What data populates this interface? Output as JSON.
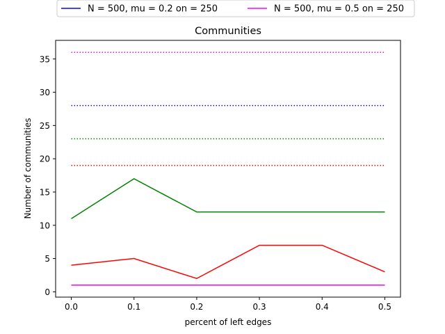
{
  "chart_data": {
    "type": "line",
    "title": "Communities",
    "xlabel": "percent of left edges",
    "ylabel": "Number of communities",
    "xlim": [
      -0.025,
      0.525
    ],
    "ylim": [
      -0.8,
      37.8
    ],
    "xticks": [
      0.0,
      0.1,
      0.2,
      0.3,
      0.4,
      0.5
    ],
    "xtick_labels": [
      "0.0",
      "0.1",
      "0.2",
      "0.3",
      "0.4",
      "0.5"
    ],
    "yticks": [
      0,
      5,
      10,
      15,
      20,
      25,
      30,
      35
    ],
    "ytick_labels": [
      "0",
      "5",
      "10",
      "15",
      "20",
      "25",
      "30",
      "35"
    ],
    "grid": false,
    "legend_placement": "above the plot, outside the axes",
    "x": [
      0.0,
      0.1,
      0.2,
      0.3,
      0.4,
      0.5
    ],
    "series": [
      {
        "name": "N = 500, mu = 0.2 on = 250",
        "color": "#0000ff",
        "style": "solid",
        "values": [
          1,
          1,
          1,
          1,
          1,
          1
        ]
      },
      {
        "name": "N = 500, mu = 0.5 on = 250",
        "color": "#ff00ff",
        "style": "solid",
        "values": [
          1,
          1,
          1,
          1,
          1,
          1
        ]
      },
      {
        "color": "#008000",
        "style": "solid",
        "values": [
          11,
          17,
          12,
          12,
          12,
          12
        ]
      },
      {
        "color": "#ff0000",
        "style": "solid",
        "values": [
          4,
          5,
          2,
          7,
          7,
          3
        ]
      },
      {
        "color": "#ff00ff",
        "style": "dotted",
        "values": [
          36,
          36,
          36,
          36,
          36,
          36
        ]
      },
      {
        "color": "#0000ff",
        "style": "dotted",
        "values": [
          28,
          28,
          28,
          28,
          28,
          28
        ]
      },
      {
        "color": "#008000",
        "style": "dotted",
        "values": [
          23,
          23,
          23,
          23,
          23,
          23
        ]
      },
      {
        "color": "#ff0000",
        "style": "dotted",
        "values": [
          19,
          19,
          19,
          19,
          19,
          19
        ]
      }
    ],
    "legend": [
      {
        "label": "N = 500, mu = 0.2 on = 250",
        "color": "#0000ff"
      },
      {
        "label": "N = 500, mu = 0.5 on = 250",
        "color": "#ff00ff"
      }
    ]
  }
}
